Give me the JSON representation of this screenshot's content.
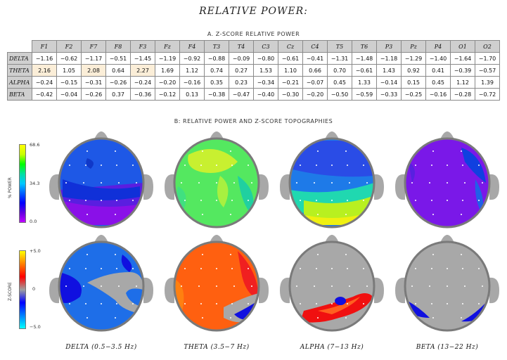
{
  "title": "RELATIVE POWER:",
  "table_title": "A. Z-SCORE RELATIVE POWER",
  "topo_title": "B: RELATIVE POWER AND Z-SCORE TOPOGRAPHIES",
  "table": {
    "columns": [
      "F1",
      "F2",
      "F7",
      "F8",
      "F3",
      "Fz",
      "F4",
      "T3",
      "T4",
      "C3",
      "Cz",
      "C4",
      "T5",
      "T6",
      "P3",
      "Pz",
      "P4",
      "O1",
      "O2"
    ],
    "rows": [
      {
        "band": "DELTA",
        "values": [
          "−1.16",
          "−0.62",
          "−1.17",
          "−0.51",
          "−1.45",
          "−1.19",
          "−0.92",
          "−0.88",
          "−0.09",
          "−0.80",
          "−0.61",
          "−0.41",
          "−1.31",
          "−1.48",
          "−1.18",
          "−1.29",
          "−1.40",
          "−1.64",
          "−1.70"
        ],
        "highlight": []
      },
      {
        "band": "THETA",
        "values": [
          "2.16",
          "1.05",
          "2.08",
          "0.64",
          "2.27",
          "1.69",
          "1.12",
          "0.74",
          "0.27",
          "1.53",
          "1.10",
          "0.66",
          "0.70",
          "−0.61",
          "1.43",
          "0.92",
          "0.41",
          "−0.39",
          "−0.57"
        ],
        "highlight": [
          0,
          2,
          4
        ]
      },
      {
        "band": "ALPHA",
        "values": [
          "−0.24",
          "−0.15",
          "−0.31",
          "−0.26",
          "−0.24",
          "−0.20",
          "−0.16",
          "0.35",
          "0.23",
          "−0.34",
          "−0.21",
          "−0.07",
          "0.45",
          "1.33",
          "−0.14",
          "0.15",
          "0.45",
          "1.12",
          "1.39"
        ],
        "highlight": []
      },
      {
        "band": "BETA",
        "values": [
          "−0.42",
          "−0.04",
          "−0.26",
          "0.37",
          "−0.36",
          "−0.12",
          "0.13",
          "−0.38",
          "−0.47",
          "−0.40",
          "−0.30",
          "−0.20",
          "−0.50",
          "−0.59",
          "−0.33",
          "−0.25",
          "−0.16",
          "−0.28",
          "−0.72"
        ],
        "highlight": []
      }
    ]
  },
  "power_scale": {
    "axis_label": "% POWER",
    "ticks": [
      "68.6",
      "34.3",
      "0.0"
    ],
    "gradient": [
      "#ffff00",
      "#c8ff00",
      "#00ff00",
      "#00e0a0",
      "#00c8ff",
      "#0060ff",
      "#0000ff",
      "#6000e0",
      "#c000ff"
    ]
  },
  "zscore_scale": {
    "axis_label": "Z-SCORE",
    "ticks": [
      "+5.0",
      "0",
      "−5.0"
    ],
    "gradient": [
      "#ffff00",
      "#ff8000",
      "#ff0000",
      "#a0a0a0",
      "#0000ff",
      "#0080ff",
      "#00ffff"
    ]
  },
  "bands": [
    {
      "label": "DELTA (0.5−3.5 Hz)"
    },
    {
      "label": "THETA (3.5−7 Hz)"
    },
    {
      "label": "ALPHA (7−13 Hz)"
    },
    {
      "label": "BETA (13−22 Hz)"
    }
  ],
  "colors": {
    "head_gray": "#a8a8a8",
    "head_outline": "#7a7a7a"
  }
}
